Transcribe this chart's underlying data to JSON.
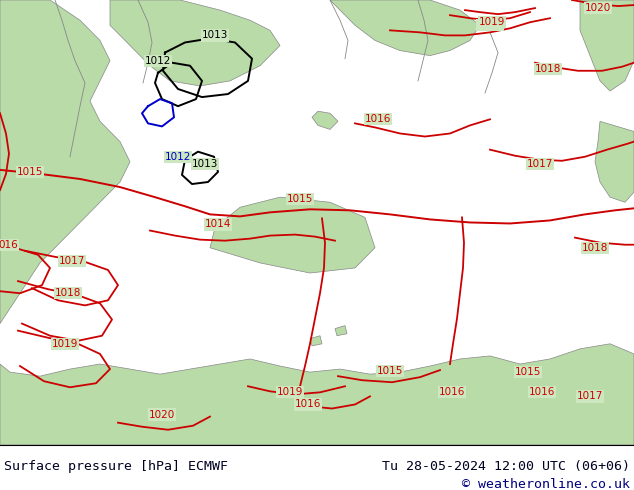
{
  "title_left": "Surface pressure [hPa] ECMWF",
  "title_right": "Tu 28-05-2024 12:00 UTC (06+06)",
  "copyright": "© weatheronline.co.uk",
  "bg_color": "#cde8c0",
  "land_color": "#b8dba8",
  "sea_color": "#cde8c0",
  "footer_bg": "#ffffff",
  "footer_text_color": "#000022",
  "copyright_color": "#000080",
  "isobar_red": "#cc0000",
  "isobar_black": "#000000",
  "isobar_blue": "#0000cc",
  "label_fontsize": 7.5,
  "footer_fontsize": 9.5,
  "figsize": [
    6.34,
    4.9
  ],
  "dpi": 100
}
